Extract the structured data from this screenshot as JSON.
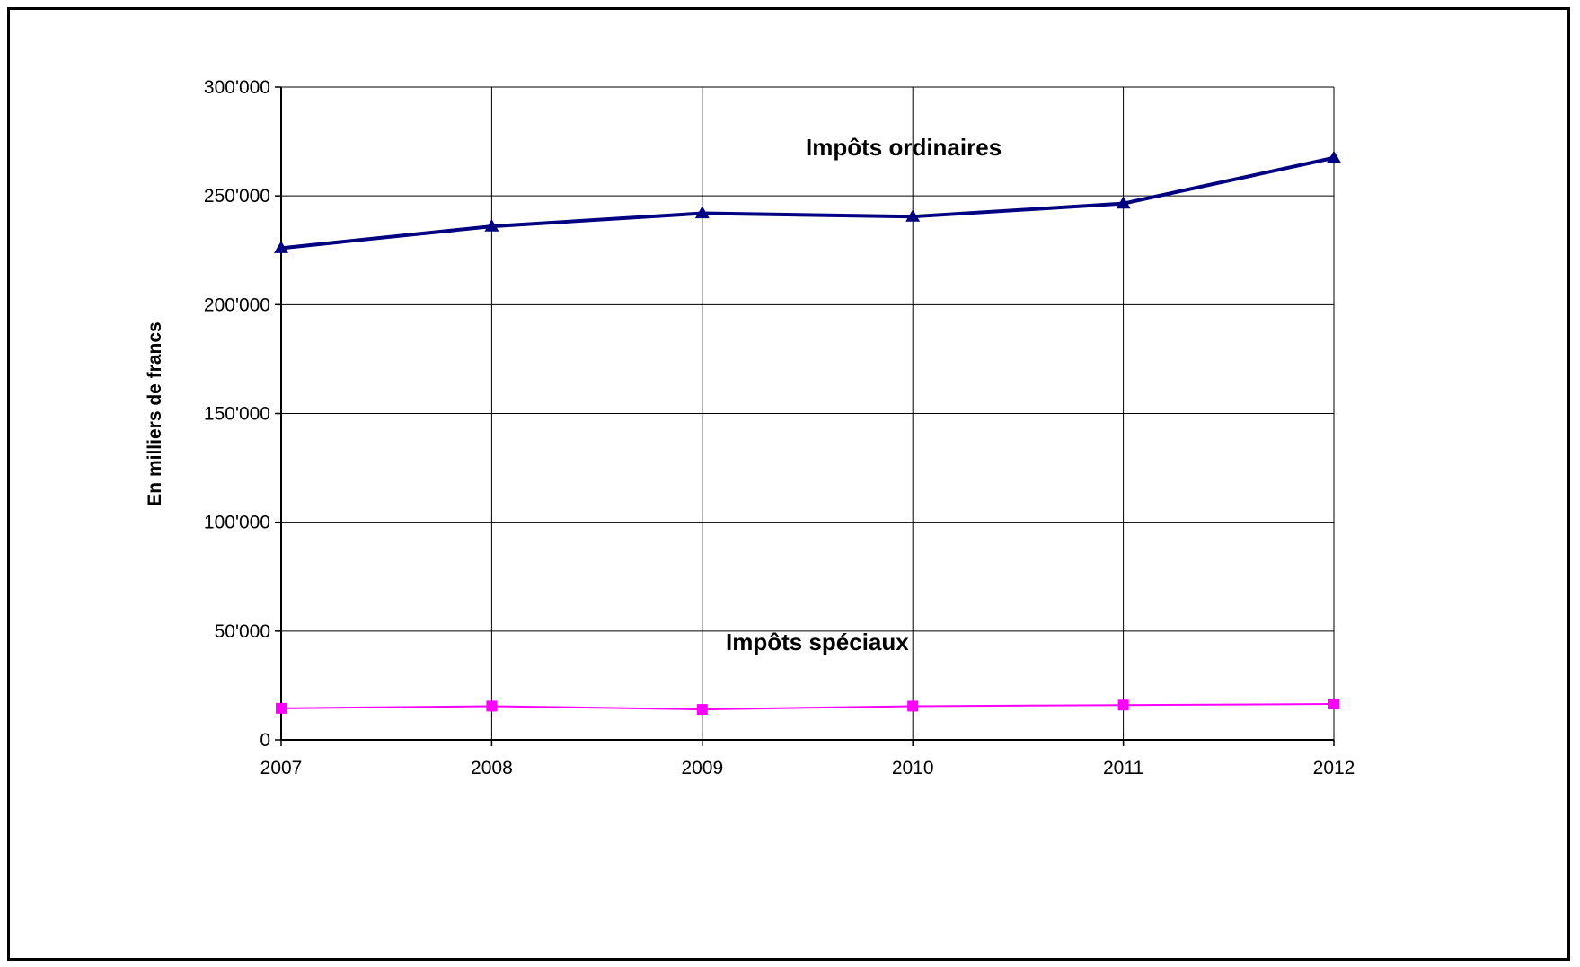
{
  "chart_data": {
    "type": "line",
    "title": "",
    "xlabel": "",
    "ylabel": "En  milliers  de  francs",
    "x": [
      "2007",
      "2008",
      "2009",
      "2010",
      "2011",
      "2012"
    ],
    "ylim": [
      0,
      300000
    ],
    "y_ticks": [
      0,
      50000,
      100000,
      150000,
      200000,
      250000,
      300000
    ],
    "y_tick_labels": [
      "0",
      "50'000",
      "100'000",
      "150'000",
      "200'000",
      "250'000",
      "300'000"
    ],
    "grid": true,
    "legend": "none",
    "series": [
      {
        "name": "Impôts ordinaires",
        "values": [
          226000,
          236000,
          242000,
          240500,
          246500,
          267500
        ],
        "color": "#000080",
        "marker": "triangle"
      },
      {
        "name": "Impôts spéciaux",
        "values": [
          14500,
          15500,
          14000,
          15500,
          16000,
          16500
        ],
        "color": "#ff00ff",
        "marker": "square"
      }
    ]
  }
}
